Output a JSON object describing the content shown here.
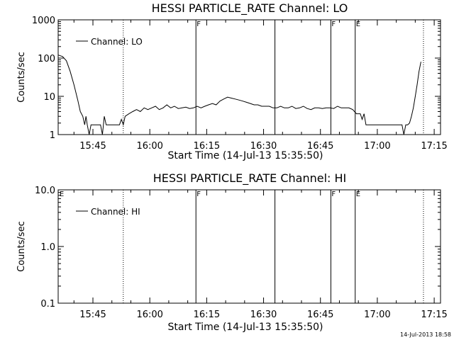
{
  "colors": {
    "background": "#ffffff",
    "foreground": "#000000"
  },
  "footer": {
    "timestamp": "14-Jul-2013 18:58"
  },
  "chart_data": [
    {
      "type": "line",
      "title": "HESSI PARTICLE_RATE Channel: LO",
      "xlabel": "Start Time (14-Jul-13 15:35:50)",
      "ylabel": "Counts/sec",
      "yscale": "log",
      "ylim": [
        1,
        1000
      ],
      "xlim": [
        "15:35:50",
        "17:16:40"
      ],
      "grid": false,
      "legend": {
        "placement": "top-left",
        "entries": [
          "Channel: LO"
        ]
      },
      "x_ticks": [
        "15:45",
        "16:00",
        "16:15",
        "16:30",
        "16:45",
        "17:00",
        "17:15"
      ],
      "y_ticks": [
        "1",
        "10",
        "100",
        "1000"
      ],
      "markers": [
        {
          "time": "15:53:00",
          "style": "dotted",
          "label": ""
        },
        {
          "time": "16:12:10",
          "style": "solid",
          "label": "F"
        },
        {
          "time": "16:33:00",
          "style": "solid",
          "label": ""
        },
        {
          "time": "16:47:45",
          "style": "solid",
          "label": "F"
        },
        {
          "time": "16:54:10",
          "style": "solid",
          "label": "E"
        },
        {
          "time": "17:12:10",
          "style": "dotted",
          "label": ""
        }
      ],
      "series": [
        {
          "name": "Channel: LO",
          "points": [
            [
              "15:35:50",
              120
            ],
            [
              "15:37:00",
              110
            ],
            [
              "15:38:00",
              85
            ],
            [
              "15:39:00",
              45
            ],
            [
              "15:40:00",
              20
            ],
            [
              "15:41:00",
              8
            ],
            [
              "15:41:40",
              4
            ],
            [
              "15:42:20",
              3
            ],
            [
              "15:42:50",
              1.8
            ],
            [
              "15:43:10",
              3
            ],
            [
              "15:43:30",
              1.8
            ],
            [
              "15:44:00",
              1
            ],
            [
              "15:44:30",
              1.8
            ],
            [
              "15:45:00",
              1.8
            ],
            [
              "15:46:00",
              1.8
            ],
            [
              "15:47:00",
              1.8
            ],
            [
              "15:47:30",
              1
            ],
            [
              "15:48:00",
              3
            ],
            [
              "15:48:30",
              1.8
            ],
            [
              "15:49:00",
              1.8
            ],
            [
              "15:50:00",
              1.8
            ],
            [
              "15:51:00",
              1.8
            ],
            [
              "15:52:00",
              1.8
            ],
            [
              "15:52:30",
              2.5
            ],
            [
              "15:53:00",
              1.8
            ],
            [
              "15:53:30",
              3
            ],
            [
              "15:54:30",
              3.5
            ],
            [
              "15:55:30",
              4
            ],
            [
              "15:56:30",
              4.5
            ],
            [
              "15:57:30",
              4
            ],
            [
              "15:58:30",
              5
            ],
            [
              "15:59:30",
              4.5
            ],
            [
              "16:00:30",
              5
            ],
            [
              "16:01:30",
              5.5
            ],
            [
              "16:02:30",
              4.5
            ],
            [
              "16:03:30",
              5
            ],
            [
              "16:04:30",
              6
            ],
            [
              "16:05:30",
              5
            ],
            [
              "16:06:30",
              5.5
            ],
            [
              "16:07:30",
              4.8
            ],
            [
              "16:08:30",
              5
            ],
            [
              "16:09:30",
              5.2
            ],
            [
              "16:10:30",
              4.8
            ],
            [
              "16:11:30",
              5
            ],
            [
              "16:12:30",
              5.5
            ],
            [
              "16:13:30",
              5
            ],
            [
              "16:14:30",
              5.5
            ],
            [
              "16:15:30",
              6
            ],
            [
              "16:16:30",
              6.5
            ],
            [
              "16:17:30",
              6
            ],
            [
              "16:18:30",
              7.5
            ],
            [
              "16:19:30",
              8.5
            ],
            [
              "16:20:30",
              9.5
            ],
            [
              "16:21:30",
              9
            ],
            [
              "16:22:30",
              8.5
            ],
            [
              "16:23:30",
              8
            ],
            [
              "16:24:30",
              7.5
            ],
            [
              "16:25:30",
              7
            ],
            [
              "16:26:30",
              6.5
            ],
            [
              "16:27:30",
              6
            ],
            [
              "16:28:30",
              6
            ],
            [
              "16:29:30",
              5.5
            ],
            [
              "16:30:30",
              5.5
            ],
            [
              "16:31:30",
              5.5
            ],
            [
              "16:32:30",
              5
            ],
            [
              "16:33:30",
              5
            ],
            [
              "16:34:30",
              5.5
            ],
            [
              "16:35:30",
              5
            ],
            [
              "16:36:30",
              5
            ],
            [
              "16:37:30",
              5.5
            ],
            [
              "16:38:30",
              4.8
            ],
            [
              "16:39:30",
              5
            ],
            [
              "16:40:30",
              5.5
            ],
            [
              "16:41:30",
              4.8
            ],
            [
              "16:42:30",
              4.5
            ],
            [
              "16:43:30",
              5
            ],
            [
              "16:44:30",
              5
            ],
            [
              "16:45:30",
              4.8
            ],
            [
              "16:46:30",
              5
            ],
            [
              "16:47:30",
              5
            ],
            [
              "16:48:30",
              4.8
            ],
            [
              "16:49:30",
              5.5
            ],
            [
              "16:50:30",
              5
            ],
            [
              "16:51:30",
              5
            ],
            [
              "16:52:30",
              5
            ],
            [
              "16:53:30",
              4.5
            ],
            [
              "16:54:30",
              3.5
            ],
            [
              "16:55:30",
              3.5
            ],
            [
              "16:56:00",
              2.5
            ],
            [
              "16:56:30",
              3.5
            ],
            [
              "16:57:00",
              1.8
            ],
            [
              "16:58:00",
              1.8
            ],
            [
              "16:59:00",
              1.8
            ],
            [
              "17:00:00",
              1.8
            ],
            [
              "17:01:00",
              1.8
            ],
            [
              "17:02:00",
              1.8
            ],
            [
              "17:03:00",
              1.8
            ],
            [
              "17:04:00",
              1.8
            ],
            [
              "17:05:00",
              1.8
            ],
            [
              "17:06:00",
              1.8
            ],
            [
              "17:06:30",
              1.8
            ],
            [
              "17:07:00",
              1
            ],
            [
              "17:07:30",
              1.8
            ],
            [
              "17:08:00",
              1.8
            ],
            [
              "17:08:30",
              2
            ],
            [
              "17:09:00",
              3
            ],
            [
              "17:09:30",
              5
            ],
            [
              "17:10:00",
              10
            ],
            [
              "17:10:30",
              20
            ],
            [
              "17:11:00",
              45
            ],
            [
              "17:11:30",
              80
            ]
          ]
        }
      ]
    },
    {
      "type": "line",
      "title": "HESSI PARTICLE_RATE Channel: HI",
      "xlabel": "Start Time (14-Jul-13 15:35:50)",
      "ylabel": "Counts/sec",
      "yscale": "log",
      "ylim": [
        0.1,
        10
      ],
      "xlim": [
        "15:35:50",
        "17:16:40"
      ],
      "grid": false,
      "legend": {
        "placement": "top-left",
        "entries": [
          "Channel: HI"
        ]
      },
      "x_ticks": [
        "15:45",
        "16:00",
        "16:15",
        "16:30",
        "16:45",
        "17:00",
        "17:15"
      ],
      "y_ticks": [
        "0.1",
        "1.0",
        "10.0"
      ],
      "markers": [
        {
          "time": "15:36:00",
          "style": "none",
          "label": "E"
        },
        {
          "time": "15:53:00",
          "style": "dotted",
          "label": ""
        },
        {
          "time": "16:12:10",
          "style": "solid",
          "label": "F"
        },
        {
          "time": "16:33:00",
          "style": "solid",
          "label": ""
        },
        {
          "time": "16:47:45",
          "style": "solid",
          "label": "F"
        },
        {
          "time": "16:54:10",
          "style": "solid",
          "label": "E"
        },
        {
          "time": "17:12:10",
          "style": "dotted",
          "label": ""
        }
      ],
      "series": [
        {
          "name": "Channel: HI",
          "points": []
        }
      ]
    }
  ]
}
